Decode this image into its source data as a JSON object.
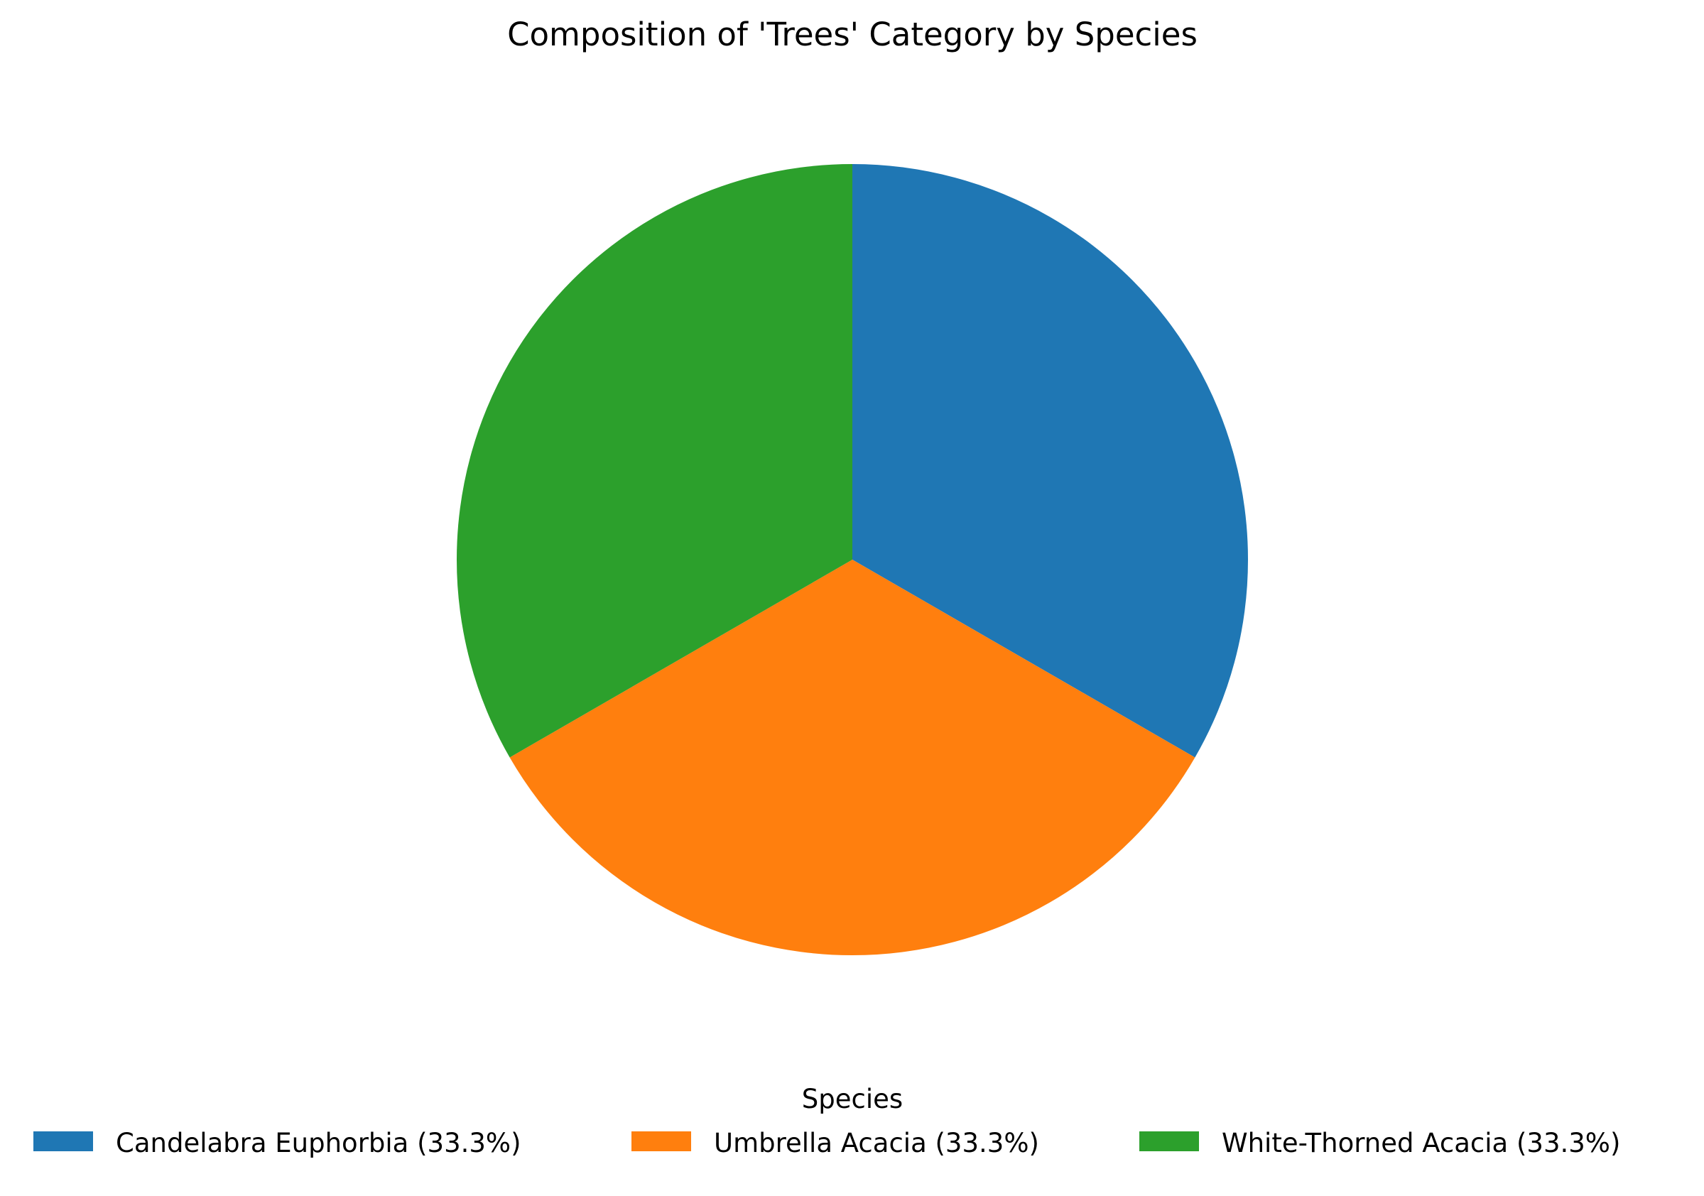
{
  "chart_data": {
    "type": "pie",
    "title": "Composition of 'Trees' Category by Species",
    "categories": [
      "Candelabra Euphorbia",
      "Umbrella Acacia",
      "White-Thorned Acacia"
    ],
    "values": [
      33.3,
      33.3,
      33.3
    ],
    "legend_labels": [
      "Candelabra Euphorbia (33.3%)",
      "Umbrella Acacia (33.3%)",
      "White-Thorned Acacia (33.3%)"
    ],
    "legend_title": "Species",
    "legend_position": "bottom",
    "colors": [
      "#1f77b4",
      "#ff7f0e",
      "#2ca02c"
    ],
    "start_angle_deg": 90,
    "direction": "clockwise"
  }
}
